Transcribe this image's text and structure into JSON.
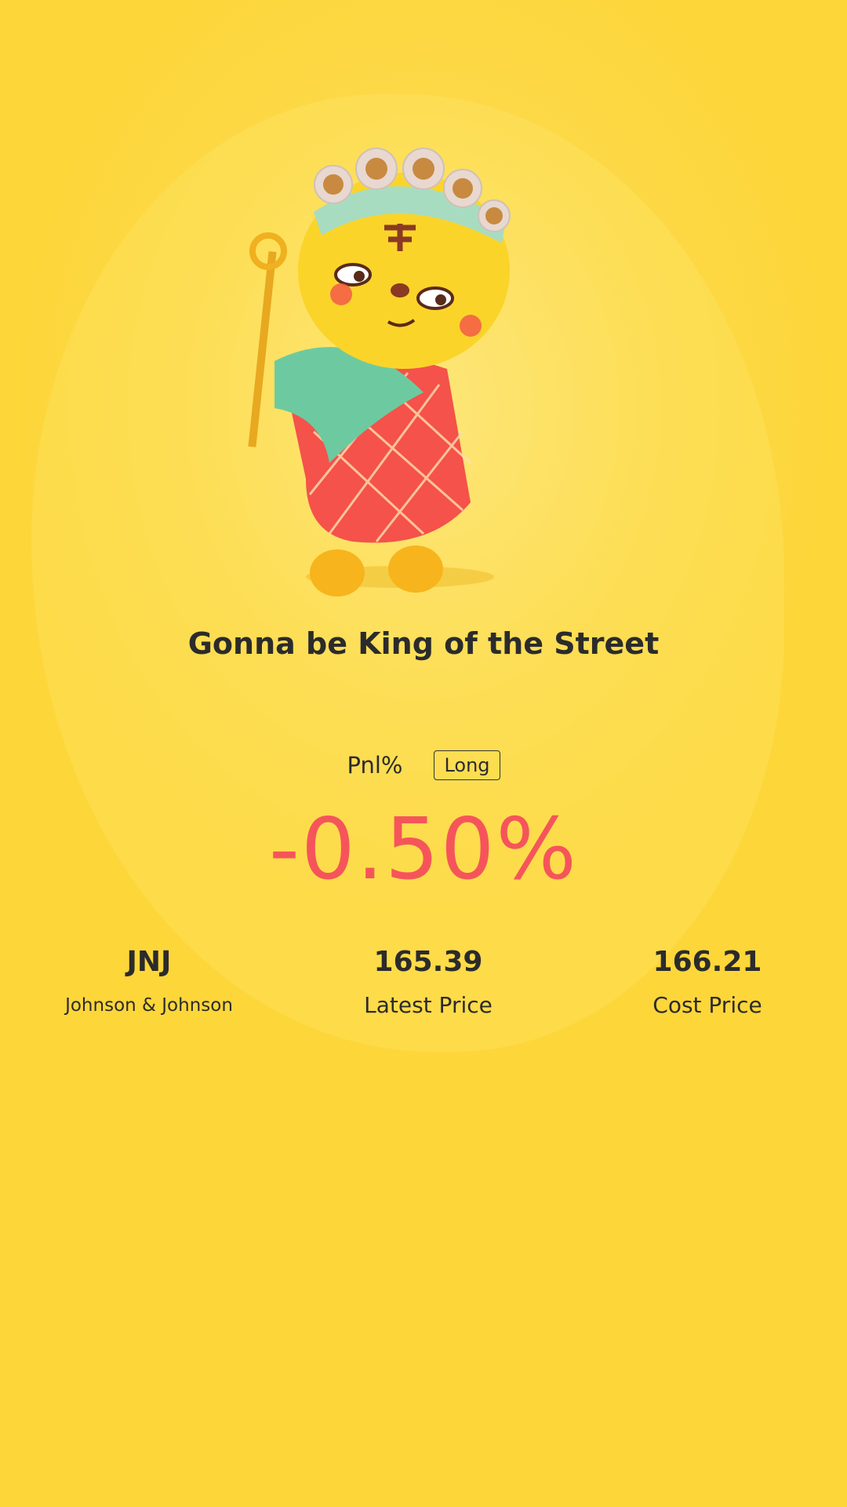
{
  "title": "Gonna be King of the Street",
  "pnl": {
    "label": "Pnl%",
    "direction": "Long",
    "value": "-0.50%",
    "value_color": "#f5555a"
  },
  "stats": [
    {
      "main": "JNJ",
      "sub": "Johnson & Johnson"
    },
    {
      "main": "165.39",
      "sub": "Latest Price"
    },
    {
      "main": "166.21",
      "sub": "Cost Price"
    }
  ],
  "colors": {
    "background": "#fdd948",
    "text": "#2b2b2b"
  }
}
